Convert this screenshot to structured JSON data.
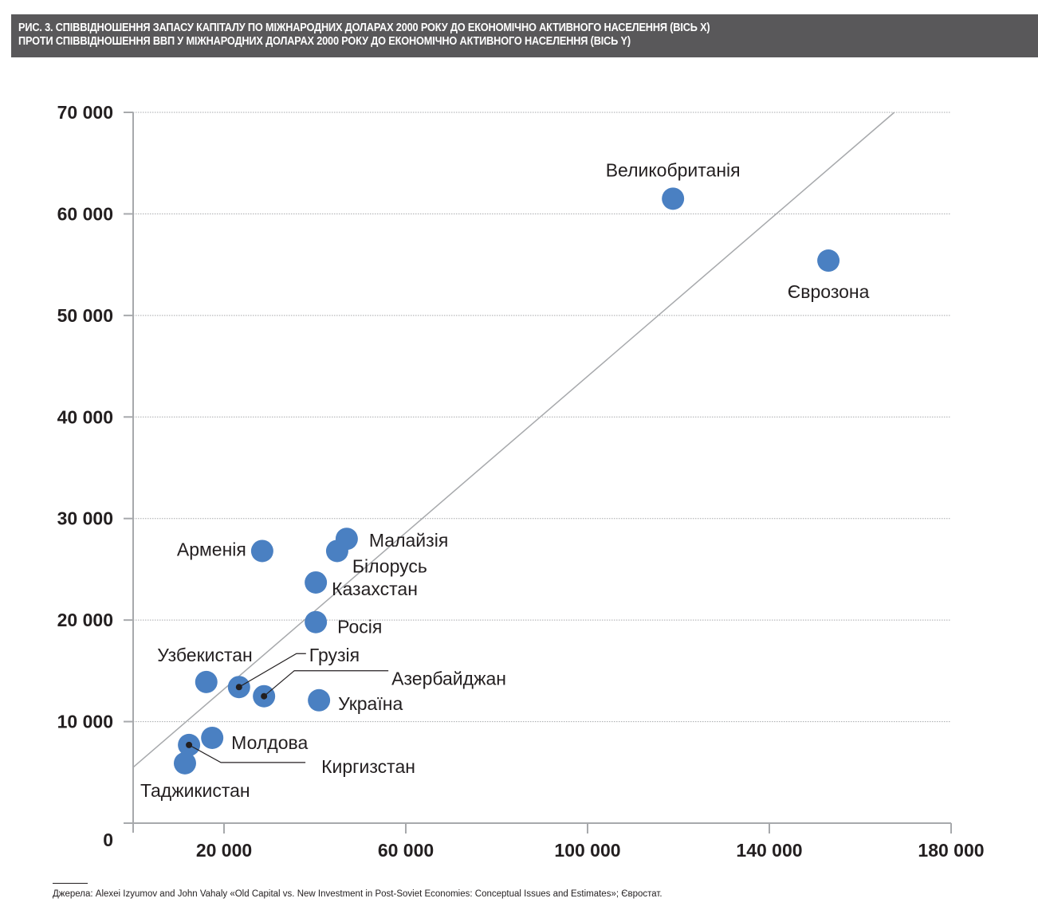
{
  "title": {
    "line1": "РИС. 3. СПІВВІДНОШЕННЯ ЗАПАСУ КАПІТАЛУ ПО МІЖНАРОДНИХ ДОЛАРАХ 2000 РОКУ ДО ЕКОНОМІЧНО АКТИВНОГО НАСЕЛЕННЯ (ВІСЬ X)",
    "line2": "ПРОТИ СПІВВІДНОШЕННЯ ВВП У МІЖНАРОДНИХ ДОЛАРАХ 2000 РОКУ ДО ЕКОНОМІЧНО АКТИВНОГО НАСЕЛЕННЯ (ВІСЬ Y)"
  },
  "source": "Джерела: Alexei Izyumov and John Vahaly «Old Capital vs. New Investment in Post-Soviet Economies: Conceptual Issues and Estimates»; Євростат.",
  "colors": {
    "title_bg": "#59585a",
    "point": "#4a80c2",
    "axis": "#a7a9ac",
    "text": "#231f20"
  },
  "chart_data": {
    "type": "scatter",
    "title": "Рис. 3. Співвідношення запасу капіталу по міжнародних доларах 2000 року до економічно активного населення (вісь X) проти співвідношення ВВП у міжнародних доларах 2000 року до економічно активного населення (вісь Y)",
    "xlabel": "",
    "ylabel": "",
    "xlim": [
      0,
      180000
    ],
    "ylim": [
      0,
      70000
    ],
    "x_ticks": [
      20000,
      60000,
      100000,
      140000,
      180000
    ],
    "x_tick_labels": [
      "20 000",
      "60 000",
      "100 000",
      "140 000",
      "180 000"
    ],
    "y_ticks": [
      0,
      10000,
      20000,
      30000,
      40000,
      50000,
      60000,
      70000
    ],
    "y_tick_labels": [
      "0",
      "10 000",
      "20 000",
      "30 000",
      "40 000",
      "50 000",
      "60 000",
      "70 000"
    ],
    "grid": "horizontal dotted",
    "trend_line": {
      "x": [
        0,
        167500
      ],
      "y": [
        5500,
        70000
      ]
    },
    "points": [
      {
        "name": "Великобританія",
        "x": 118800,
        "y": 61500
      },
      {
        "name": "Єврозона",
        "x": 153000,
        "y": 55400
      },
      {
        "name": "Малайзія",
        "x": 47000,
        "y": 28000
      },
      {
        "name": "Білорусь",
        "x": 44900,
        "y": 26800
      },
      {
        "name": "Арменія",
        "x": 28400,
        "y": 26800
      },
      {
        "name": "Казахстан",
        "x": 40200,
        "y": 23700
      },
      {
        "name": "Росія",
        "x": 40200,
        "y": 19800
      },
      {
        "name": "Узбекистан",
        "x": 16100,
        "y": 13900
      },
      {
        "name": "Грузія",
        "x": 23300,
        "y": 13400
      },
      {
        "name": "Азербайджан",
        "x": 28800,
        "y": 12500
      },
      {
        "name": "Україна",
        "x": 40900,
        "y": 12100
      },
      {
        "name": "Молдова",
        "x": 17400,
        "y": 8400
      },
      {
        "name": "Киргизстан",
        "x": 12300,
        "y": 7700
      },
      {
        "name": "Таджикистан",
        "x": 11400,
        "y": 5900
      }
    ]
  }
}
